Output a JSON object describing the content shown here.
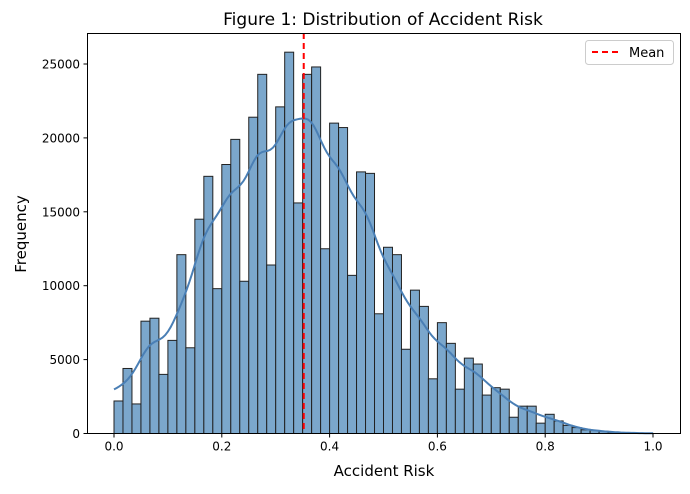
{
  "chart_data": {
    "type": "bar",
    "subtype": "histogram",
    "title": "Figure 1: Distribution of Accident Risk",
    "xlabel": "Accident Risk",
    "ylabel": "Frequency",
    "xlim": [
      -0.05,
      1.05
    ],
    "ylim": [
      0,
      27000
    ],
    "bin_range": [
      0,
      1
    ],
    "bin_count": 60,
    "values": [
      2200,
      4400,
      2000,
      7600,
      7800,
      4000,
      6300,
      12100,
      5800,
      14500,
      17400,
      9800,
      18200,
      19900,
      10300,
      21400,
      24300,
      11400,
      22100,
      25800,
      15600,
      24300,
      24800,
      12500,
      21000,
      20700,
      10700,
      17700,
      17600,
      8100,
      12600,
      12100,
      5700,
      9700,
      8600,
      3700,
      7500,
      6100,
      3000,
      5100,
      4700,
      2600,
      3100,
      3000,
      1100,
      1850,
      1850,
      700,
      1300,
      850,
      550,
      400,
      250,
      200,
      150,
      80,
      60,
      40,
      20,
      10
    ],
    "xticks": [
      "0.0",
      "0.2",
      "0.4",
      "0.6",
      "0.8",
      "1.0"
    ],
    "xtick_values": [
      0,
      0.2,
      0.4,
      0.6,
      0.8,
      1.0
    ],
    "yticks": [
      "0",
      "5000",
      "10000",
      "15000",
      "20000",
      "25000"
    ],
    "ytick_values": [
      0,
      5000,
      10000,
      15000,
      20000,
      25000
    ],
    "mean": 0.352,
    "legend": {
      "placement": "top-right",
      "entries": [
        {
          "label": "Mean",
          "style": "dashed",
          "color": "#ff0000"
        }
      ]
    },
    "kde": true,
    "grid": false,
    "colors": {
      "bar": "#7ba7cc",
      "edge": "#222222",
      "kde": "#4a7fb5",
      "mean": "#ff0000"
    }
  }
}
